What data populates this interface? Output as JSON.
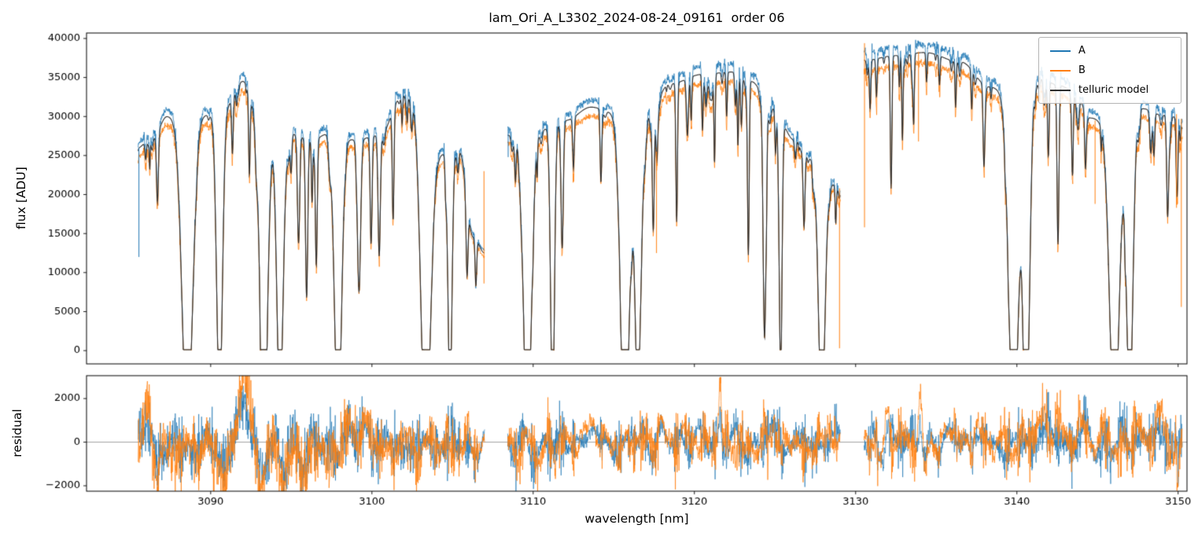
{
  "title": "lam_Ori_A_L3302_2024-08-24_09161  order 06",
  "xlabel": "wavelength [nm]",
  "axes": {
    "xlim": [
      3082.3,
      3150.55
    ],
    "xticks": [
      3090,
      3100,
      3110,
      3120,
      3130,
      3140,
      3150
    ],
    "xtick_labels": [
      "3090",
      "3100",
      "3110",
      "3120",
      "3130",
      "3140",
      "3150"
    ],
    "grid": false
  },
  "flux_panel": {
    "ylabel": "flux [ADU]",
    "ylim": [
      -1700,
      40700
    ],
    "yticks": [
      0,
      5000,
      10000,
      15000,
      20000,
      25000,
      30000,
      35000,
      40000
    ],
    "ytick_labels": [
      "0",
      "5000",
      "10000",
      "15000",
      "20000",
      "25000",
      "30000",
      "35000",
      "40000"
    ]
  },
  "residual_panel": {
    "ylabel": "residual",
    "ylim": [
      -2250,
      3050
    ],
    "yticks": [
      -2000,
      0,
      2000
    ],
    "ytick_labels": [
      "−2000",
      "0",
      "2000"
    ],
    "zero_line": true
  },
  "legend": {
    "loc": "upper right",
    "items": [
      {
        "label": "A",
        "color": "#1f77b4"
      },
      {
        "label": "B",
        "color": "#ff7f0e"
      },
      {
        "label": "telluric model",
        "color": "#2e2e2e"
      }
    ]
  },
  "chart_data": {
    "type": "line",
    "title": "lam_Ori_A_L3302_2024-08-24_09161  order 06",
    "xlabel": "wavelength [nm]",
    "ylabel_top": "flux [ADU]",
    "ylabel_bottom": "residual",
    "segments": [
      [
        3085.5,
        3107.0
      ],
      [
        3108.42,
        3129.05
      ],
      [
        3130.52,
        3150.27
      ]
    ],
    "continuum": [
      [
        3085.3,
        25800
      ],
      [
        3086.4,
        27200
      ],
      [
        3087.3,
        30000
      ],
      [
        3088.2,
        29500
      ],
      [
        3089.9,
        30200
      ],
      [
        3091.0,
        31500
      ],
      [
        3092.0,
        34500
      ],
      [
        3092.8,
        31000
      ],
      [
        3094.9,
        27800
      ],
      [
        3096.3,
        27000
      ],
      [
        3097.3,
        27800
      ],
      [
        3099.0,
        27000
      ],
      [
        3100.5,
        27600
      ],
      [
        3101.9,
        32700
      ],
      [
        3102.6,
        32500
      ],
      [
        3104.2,
        25200
      ],
      [
        3105.4,
        25600
      ],
      [
        3106.3,
        14500
      ],
      [
        3107.0,
        12500
      ],
      [
        3108.42,
        27600
      ],
      [
        3110.2,
        28100
      ],
      [
        3112.0,
        29500
      ],
      [
        3113.6,
        31200
      ],
      [
        3115.0,
        30500
      ],
      [
        3117.0,
        30000
      ],
      [
        3118.5,
        34200
      ],
      [
        3120.5,
        35400
      ],
      [
        3122.3,
        35700
      ],
      [
        3123.5,
        34500
      ],
      [
        3124.9,
        31000
      ],
      [
        3126.2,
        27000
      ],
      [
        3127.3,
        24500
      ],
      [
        3128.6,
        21300
      ],
      [
        3129.05,
        20800
      ],
      [
        3130.52,
        37200
      ],
      [
        3132.5,
        37800
      ],
      [
        3134.3,
        38200
      ],
      [
        3136.5,
        37000
      ],
      [
        3138.3,
        33800
      ],
      [
        3139.2,
        33200
      ],
      [
        3141.3,
        35100
      ],
      [
        3142.6,
        34000
      ],
      [
        3143.5,
        33300
      ],
      [
        3144.6,
        29800
      ],
      [
        3145.6,
        29000
      ],
      [
        3147.8,
        31000
      ],
      [
        3149.0,
        30200
      ],
      [
        3150.27,
        29800
      ]
    ],
    "telluric_lines": [
      [
        3086.7,
        0.32,
        0.06
      ],
      [
        3088.55,
        1.35,
        0.32
      ],
      [
        3090.55,
        1.22,
        0.18
      ],
      [
        3091.35,
        0.22,
        0.05
      ],
      [
        3092.4,
        0.28,
        0.045
      ],
      [
        3093.3,
        1.3,
        0.24
      ],
      [
        3094.3,
        1.22,
        0.2
      ],
      [
        3095.45,
        0.5,
        0.07
      ],
      [
        3095.95,
        0.75,
        0.07
      ],
      [
        3096.55,
        0.6,
        0.06
      ],
      [
        3097.9,
        1.35,
        0.22
      ],
      [
        3099.2,
        0.72,
        0.1
      ],
      [
        3099.95,
        0.5,
        0.06
      ],
      [
        3100.45,
        0.55,
        0.07
      ],
      [
        3101.3,
        0.3,
        0.05
      ],
      [
        3103.35,
        1.4,
        0.3
      ],
      [
        3104.85,
        1.2,
        0.12
      ],
      [
        3105.9,
        0.5,
        0.06
      ],
      [
        3106.45,
        0.42,
        0.05
      ],
      [
        3108.9,
        0.2,
        0.05
      ],
      [
        3109.65,
        1.35,
        0.25
      ],
      [
        3111.2,
        1.25,
        0.12
      ],
      [
        3111.8,
        0.55,
        0.07
      ],
      [
        3112.5,
        0.22,
        0.05
      ],
      [
        3114.2,
        0.28,
        0.05
      ],
      [
        3115.7,
        1.32,
        0.28
      ],
      [
        3116.5,
        1.18,
        0.18
      ],
      [
        3117.45,
        0.5,
        0.06
      ],
      [
        3118.9,
        0.52,
        0.05
      ],
      [
        3119.8,
        0.16,
        0.04
      ],
      [
        3120.5,
        0.2,
        0.04
      ],
      [
        3121.25,
        0.32,
        0.04
      ],
      [
        3122.0,
        0.16,
        0.04
      ],
      [
        3122.7,
        0.26,
        0.04
      ],
      [
        3123.35,
        0.55,
        0.05
      ],
      [
        3124.35,
        0.95,
        0.09
      ],
      [
        3125.35,
        0.92,
        0.09
      ],
      [
        3126.8,
        0.38,
        0.06
      ],
      [
        3127.9,
        1.35,
        0.2
      ],
      [
        3131.3,
        0.12,
        0.04
      ],
      [
        3132.2,
        0.45,
        0.05
      ],
      [
        3132.9,
        0.28,
        0.04
      ],
      [
        3133.6,
        0.22,
        0.04
      ],
      [
        3134.4,
        0.1,
        0.04
      ],
      [
        3135.2,
        0.1,
        0.04
      ],
      [
        3136.2,
        0.16,
        0.04
      ],
      [
        3137.2,
        0.14,
        0.04
      ],
      [
        3137.95,
        0.2,
        0.05
      ],
      [
        3139.8,
        1.33,
        0.3
      ],
      [
        3140.6,
        1.22,
        0.2
      ],
      [
        3141.95,
        0.28,
        0.05
      ],
      [
        3142.55,
        0.6,
        0.06
      ],
      [
        3143.45,
        0.32,
        0.05
      ],
      [
        3144.25,
        0.2,
        0.05
      ],
      [
        3146.05,
        1.33,
        0.3
      ],
      [
        3147.0,
        1.22,
        0.2
      ],
      [
        3148.5,
        0.18,
        0.05
      ],
      [
        3149.35,
        0.42,
        0.06
      ],
      [
        3149.95,
        0.28,
        0.05
      ]
    ],
    "micro_lines": {
      "seed": 42,
      "count": 150,
      "depth_max": 0.22,
      "width_min": 0.025,
      "width_max": 0.075
    },
    "series": [
      {
        "name": "A",
        "color": "#1f77b4",
        "scale": 1.028,
        "noise_seed": 7
      },
      {
        "name": "B",
        "color": "#ff7f0e",
        "scale": 0.963,
        "noise_seed": 13
      },
      {
        "name": "telluric model",
        "color": "#2e2e2e",
        "scale": 1.0
      }
    ],
    "artifact_spikes": [
      [
        "A",
        3085.55,
        12000,
        26000
      ],
      [
        "B",
        3106.95,
        8600,
        23000
      ],
      [
        "A",
        3108.45,
        24800,
        28300
      ],
      [
        "B",
        3117.65,
        12500,
        25500
      ],
      [
        "B",
        3129.0,
        300,
        20800
      ],
      [
        "B",
        3130.55,
        15800,
        39400
      ],
      [
        "B",
        3133.9,
        26800,
        38300
      ],
      [
        "B",
        3144.85,
        18800,
        29500
      ],
      [
        "B",
        3149.9,
        18300,
        30300
      ],
      [
        "B",
        3150.2,
        5600,
        29700
      ]
    ],
    "residual": {
      "seeds": [
        21,
        22
      ],
      "feature_scale": [
        0.55,
        1.0
      ],
      "amplitude_envelope": [
        [
          3085.5,
          1400
        ],
        [
          3087.5,
          1100
        ],
        [
          3089.5,
          800
        ],
        [
          3091.5,
          1500
        ],
        [
          3093.5,
          1300
        ],
        [
          3095.5,
          1200
        ],
        [
          3097.5,
          900
        ],
        [
          3099.5,
          800
        ],
        [
          3101.5,
          650
        ],
        [
          3103.5,
          550
        ],
        [
          3105.5,
          450
        ],
        [
          3107.0,
          350
        ],
        [
          3108.42,
          450
        ],
        [
          3110.5,
          500
        ],
        [
          3113.0,
          450
        ],
        [
          3116.0,
          450
        ],
        [
          3118.0,
          450
        ],
        [
          3120.0,
          500
        ],
        [
          3122.0,
          550
        ],
        [
          3124.0,
          500
        ],
        [
          3126.0,
          500
        ],
        [
          3128.0,
          400
        ],
        [
          3129.05,
          350
        ],
        [
          3130.52,
          450
        ],
        [
          3132.0,
          600
        ],
        [
          3134.0,
          650
        ],
        [
          3136.0,
          450
        ],
        [
          3138.0,
          450
        ],
        [
          3140.0,
          550
        ],
        [
          3141.5,
          700
        ],
        [
          3143.0,
          600
        ],
        [
          3145.0,
          500
        ],
        [
          3147.0,
          500
        ],
        [
          3149.0,
          650
        ],
        [
          3150.27,
          800
        ]
      ],
      "features": [
        [
          3086.0,
          1800,
          0.2
        ],
        [
          3086.6,
          -1400,
          0.15
        ],
        [
          3087.6,
          -900,
          0.25
        ],
        [
          3089.0,
          -600,
          0.3
        ],
        [
          3090.7,
          -1600,
          0.35
        ],
        [
          3092.05,
          3200,
          0.3
        ],
        [
          3093.2,
          -1900,
          0.25
        ],
        [
          3094.6,
          -1700,
          0.3
        ],
        [
          3095.8,
          -1500,
          0.25
        ],
        [
          3097.3,
          -900,
          0.3
        ],
        [
          3098.6,
          800,
          0.2
        ],
        [
          3099.5,
          1000,
          0.2
        ],
        [
          3101.0,
          -500,
          0.3
        ],
        [
          3103.0,
          -400,
          0.3
        ],
        [
          3105.0,
          -500,
          0.3
        ],
        [
          3106.6,
          -500,
          0.2
        ],
        [
          3109.0,
          -400,
          0.2
        ],
        [
          3110.3,
          -700,
          0.25
        ],
        [
          3111.5,
          -500,
          0.15
        ],
        [
          3113.7,
          900,
          0.3
        ],
        [
          3115.0,
          -400,
          0.2
        ],
        [
          3117.9,
          800,
          0.15
        ],
        [
          3119.5,
          400,
          0.3
        ],
        [
          3121.6,
          2800,
          0.07
        ],
        [
          3123.0,
          -500,
          0.2
        ],
        [
          3125.0,
          600,
          0.2
        ],
        [
          3126.9,
          -600,
          0.2
        ],
        [
          3128.5,
          400,
          0.2
        ],
        [
          3131.5,
          -800,
          0.15
        ],
        [
          3132.0,
          1500,
          0.12
        ],
        [
          3134.0,
          1900,
          0.1
        ],
        [
          3134.3,
          -1500,
          0.1
        ],
        [
          3136.0,
          600,
          0.3
        ],
        [
          3137.5,
          500,
          0.2
        ],
        [
          3139.5,
          -600,
          0.2
        ],
        [
          3141.6,
          1100,
          0.3
        ],
        [
          3142.6,
          900,
          0.2
        ],
        [
          3144.0,
          500,
          0.3
        ],
        [
          3146.0,
          -500,
          0.2
        ],
        [
          3147.5,
          500,
          0.25
        ],
        [
          3148.9,
          1000,
          0.25
        ],
        [
          3150.0,
          -1800,
          0.08
        ]
      ]
    }
  }
}
